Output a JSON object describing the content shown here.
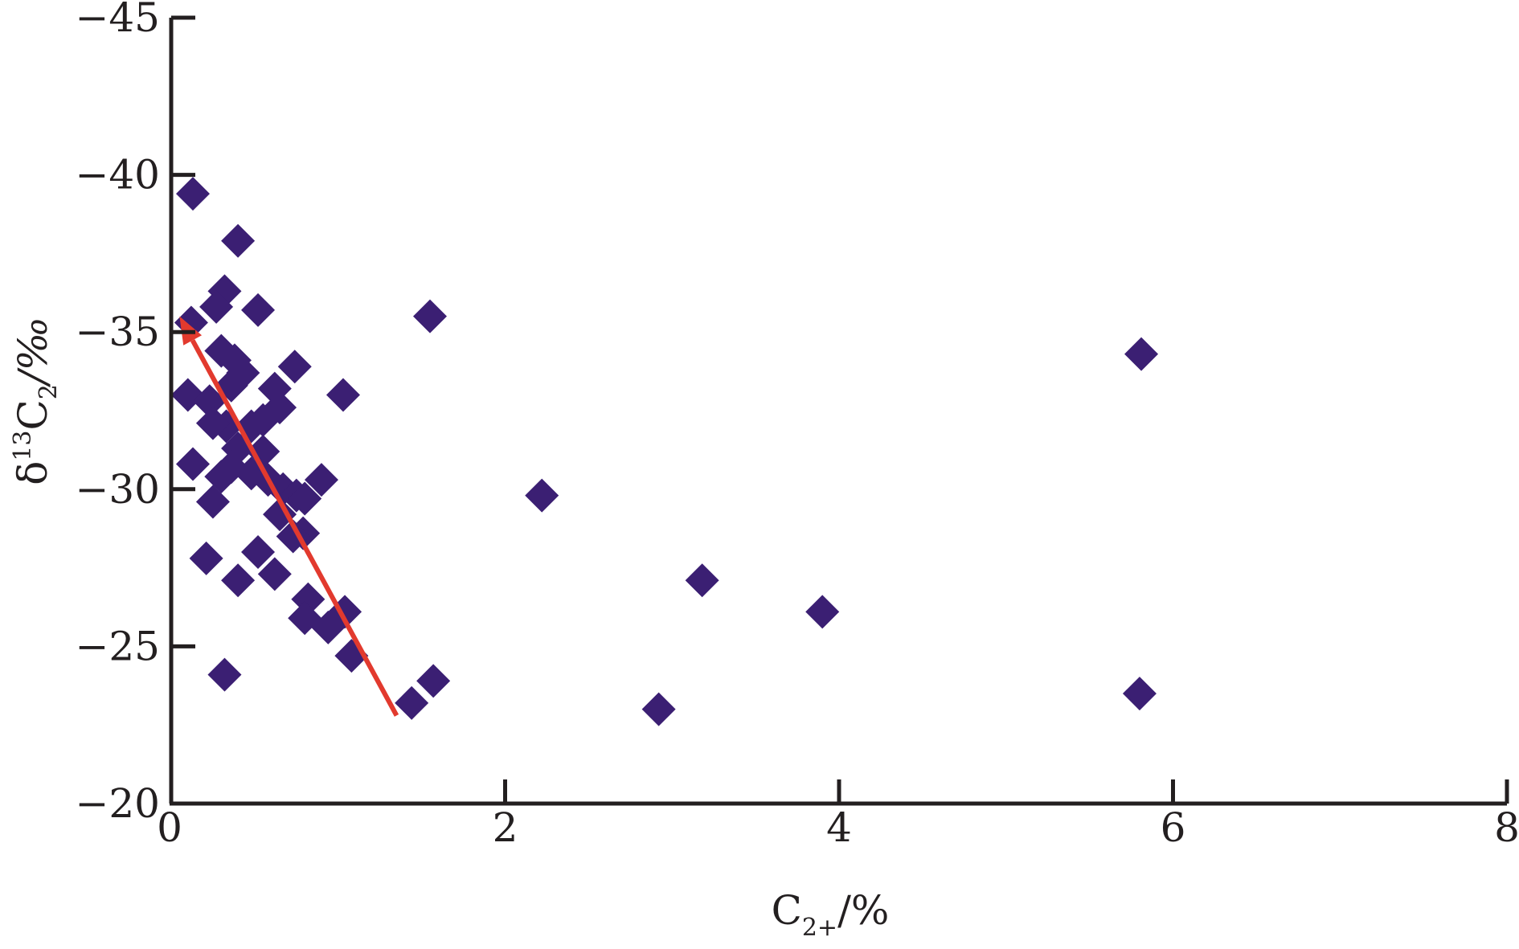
{
  "chart_data": {
    "type": "scatter",
    "title": "",
    "xlabel": {
      "main": "C",
      "sub": "2+",
      "unit": "/%"
    },
    "ylabel": {
      "delta": "δ",
      "sup": "13",
      "main": "C",
      "sub": "2",
      "unit": "/‰"
    },
    "xlim": [
      0,
      8
    ],
    "ylim": [
      -45,
      -20
    ],
    "y_inverted": true,
    "x_ticks": [
      0,
      2,
      4,
      6,
      8
    ],
    "y_ticks": [
      -45,
      -40,
      -35,
      -30,
      -25,
      -20
    ],
    "x_tick_labels": [
      "0",
      "2",
      "4",
      "6",
      "8"
    ],
    "y_tick_labels": [
      "−45",
      "−40",
      "−35",
      "−30",
      "−25",
      "−20"
    ],
    "grid": false,
    "legend": "none",
    "marker": "diamond",
    "marker_color": "#3b1f73",
    "arrow_color": "#e23a2e",
    "arrow": {
      "from": [
        1.35,
        -22.8
      ],
      "to": [
        0.05,
        -35.5
      ]
    },
    "points": [
      [
        0.13,
        -39.4
      ],
      [
        0.4,
        -37.9
      ],
      [
        0.32,
        -36.3
      ],
      [
        0.27,
        -35.8
      ],
      [
        0.52,
        -35.7
      ],
      [
        0.12,
        -35.3
      ],
      [
        0.3,
        -34.4
      ],
      [
        0.38,
        -34.1
      ],
      [
        0.43,
        -33.7
      ],
      [
        0.36,
        -33.3
      ],
      [
        0.74,
        -33.9
      ],
      [
        0.62,
        -33.2
      ],
      [
        1.03,
        -33.0
      ],
      [
        0.1,
        -33.0
      ],
      [
        0.23,
        -32.8
      ],
      [
        0.65,
        -32.6
      ],
      [
        0.55,
        -32.2
      ],
      [
        0.48,
        -32.0
      ],
      [
        0.33,
        -32.0
      ],
      [
        0.25,
        -32.1
      ],
      [
        0.4,
        -31.3
      ],
      [
        0.55,
        -31.2
      ],
      [
        0.13,
        -30.8
      ],
      [
        0.36,
        -30.7
      ],
      [
        0.48,
        -30.5
      ],
      [
        0.3,
        -30.4
      ],
      [
        0.58,
        -30.3
      ],
      [
        0.9,
        -30.3
      ],
      [
        0.67,
        -30.0
      ],
      [
        0.75,
        -29.8
      ],
      [
        0.8,
        -29.7
      ],
      [
        0.25,
        -29.6
      ],
      [
        0.65,
        -29.2
      ],
      [
        0.79,
        -28.6
      ],
      [
        0.73,
        -28.5
      ],
      [
        0.52,
        -28.0
      ],
      [
        0.21,
        -27.8
      ],
      [
        0.62,
        -27.3
      ],
      [
        0.4,
        -27.1
      ],
      [
        0.82,
        -26.5
      ],
      [
        0.8,
        -25.9
      ],
      [
        0.94,
        -25.6
      ],
      [
        1.04,
        -26.1
      ],
      [
        1.08,
        -24.7
      ],
      [
        0.32,
        -24.1
      ],
      [
        1.57,
        -23.9
      ],
      [
        1.44,
        -23.2
      ],
      [
        1.55,
        -35.5
      ],
      [
        2.22,
        -29.8
      ],
      [
        2.92,
        -23.0
      ],
      [
        3.18,
        -27.1
      ],
      [
        3.9,
        -26.1
      ],
      [
        5.81,
        -34.3
      ],
      [
        5.8,
        -23.5
      ]
    ]
  }
}
